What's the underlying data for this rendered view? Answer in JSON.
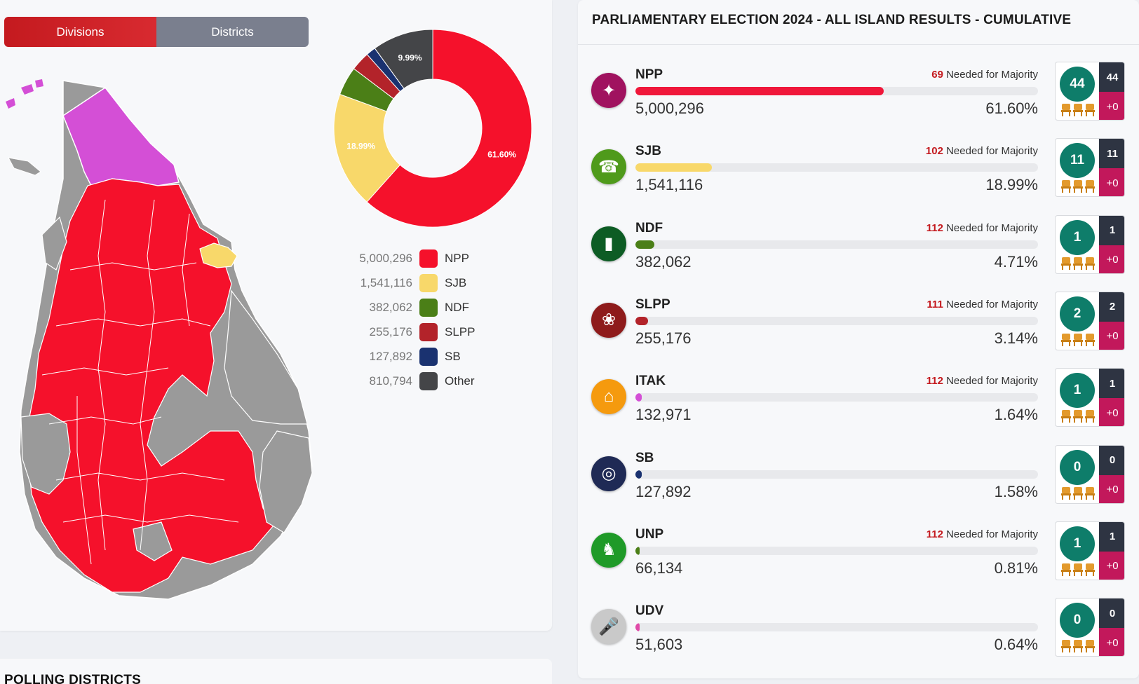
{
  "toggle": {
    "divisions_label": "Divisions",
    "districts_label": "Districts"
  },
  "donut": {
    "slices": [
      {
        "name": "NPP",
        "percent": 61.6,
        "color": "#f5112b",
        "label": "61.60%"
      },
      {
        "name": "SJB",
        "percent": 18.99,
        "color": "#f8d86a",
        "label": "18.99%"
      },
      {
        "name": "NDF",
        "percent": 4.71,
        "color": "#4b7f17",
        "label": ""
      },
      {
        "name": "SLPP",
        "percent": 3.14,
        "color": "#b3232a",
        "label": ""
      },
      {
        "name": "SB",
        "percent": 1.58,
        "color": "#1a3270",
        "label": ""
      },
      {
        "name": "Other",
        "percent": 9.99,
        "color": "#444548",
        "label": "9.99%"
      }
    ]
  },
  "legend": [
    {
      "votes": "5,000,296",
      "name": "NPP",
      "color": "#f5112b"
    },
    {
      "votes": "1,541,116",
      "name": "SJB",
      "color": "#f8d86a"
    },
    {
      "votes": "382,062",
      "name": "NDF",
      "color": "#4b7f17"
    },
    {
      "votes": "255,176",
      "name": "SLPP",
      "color": "#b3232a"
    },
    {
      "votes": "127,892",
      "name": "SB",
      "color": "#1a3270"
    },
    {
      "votes": "810,794",
      "name": "Other",
      "color": "#444548"
    }
  ],
  "polling": {
    "title": "POLLING DISTRICTS"
  },
  "results": {
    "title": "PARLIAMENTARY ELECTION 2024 - ALL ISLAND RESULTS - CUMULATIVE",
    "needed_suffix": "Needed for Majority",
    "parties": [
      {
        "name": "NPP",
        "needed": "69",
        "votes": "5,000,296",
        "percent": "61.60%",
        "share": 61.6,
        "bar_color": "#f0173a",
        "logo_color": "#a0125f",
        "logo_icon": "compass-icon",
        "logo_glyph": "✦",
        "seats": "44",
        "seats_total": "44",
        "seats_change": "+0"
      },
      {
        "name": "SJB",
        "needed": "102",
        "votes": "1,541,116",
        "percent": "18.99%",
        "share": 18.99,
        "bar_color": "#f8d86a",
        "logo_color": "#4f9a1b",
        "logo_icon": "telephone-icon",
        "logo_glyph": "☎",
        "seats": "11",
        "seats_total": "11",
        "seats_change": "+0"
      },
      {
        "name": "NDF",
        "needed": "112",
        "votes": "382,062",
        "percent": "4.71%",
        "share": 4.71,
        "bar_color": "#4b7f17",
        "logo_color": "#0d5c24",
        "logo_icon": "gas-cylinder-icon",
        "logo_glyph": "▮",
        "seats": "1",
        "seats_total": "1",
        "seats_change": "+0"
      },
      {
        "name": "SLPP",
        "needed": "111",
        "votes": "255,176",
        "percent": "3.14%",
        "share": 3.14,
        "bar_color": "#b3232a",
        "logo_color": "#8e1b1b",
        "logo_icon": "lotus-bud-icon",
        "logo_glyph": "❀",
        "seats": "2",
        "seats_total": "2",
        "seats_change": "+0"
      },
      {
        "name": "ITAK",
        "needed": "112",
        "votes": "132,971",
        "percent": "1.64%",
        "share": 1.64,
        "bar_color": "#d44fd6",
        "logo_color": "#f59a0e",
        "logo_icon": "house-icon",
        "logo_glyph": "⌂",
        "seats": "1",
        "seats_total": "1",
        "seats_change": "+0"
      },
      {
        "name": "SB",
        "needed": "",
        "votes": "127,892",
        "percent": "1.58%",
        "share": 1.58,
        "bar_color": "#1a3270",
        "logo_color": "#1f2a55",
        "logo_icon": "medal-icon",
        "logo_glyph": "◎",
        "seats": "0",
        "seats_total": "0",
        "seats_change": "+0"
      },
      {
        "name": "UNP",
        "needed": "112",
        "votes": "66,134",
        "percent": "0.81%",
        "share": 0.81,
        "bar_color": "#4b7f17",
        "logo_color": "#1f9a28",
        "logo_icon": "elephant-icon",
        "logo_glyph": "♞",
        "seats": "1",
        "seats_total": "1",
        "seats_change": "+0"
      },
      {
        "name": "UDV",
        "needed": "",
        "votes": "51,603",
        "percent": "0.64%",
        "share": 0.64,
        "bar_color": "#e04aa8",
        "logo_color": "#c9c9c9",
        "logo_icon": "microphone-icon",
        "logo_glyph": "🎤",
        "seats": "0",
        "seats_total": "0",
        "seats_change": "+0"
      }
    ]
  }
}
